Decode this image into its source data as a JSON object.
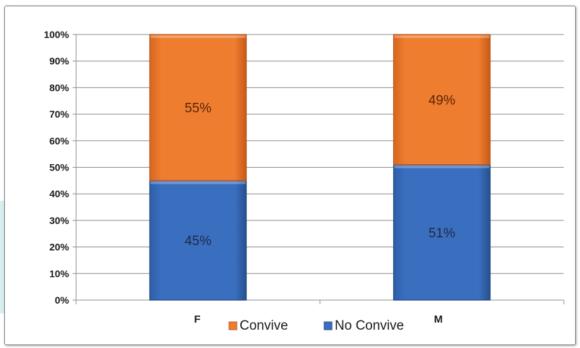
{
  "chart_data": {
    "type": "bar",
    "stacked": true,
    "categories": [
      "F",
      "M"
    ],
    "series": [
      {
        "name": "No Convive",
        "values": [
          45,
          51
        ],
        "labels": [
          "45%",
          "51%"
        ],
        "color": "#3a6fc0"
      },
      {
        "name": "Convive",
        "values": [
          55,
          49
        ],
        "labels": [
          "55%",
          "49%"
        ],
        "color": "#ee7d30"
      }
    ],
    "y_ticks": [
      "0%",
      "10%",
      "20%",
      "30%",
      "40%",
      "50%",
      "60%",
      "70%",
      "80%",
      "90%",
      "100%"
    ],
    "ylim": [
      0,
      100
    ],
    "grid": true,
    "legend": {
      "placement": "bottom",
      "entries": [
        {
          "label": "Convive",
          "color": "#ee7d30"
        },
        {
          "label": "No Convive",
          "color": "#3a6fc0"
        }
      ]
    }
  }
}
